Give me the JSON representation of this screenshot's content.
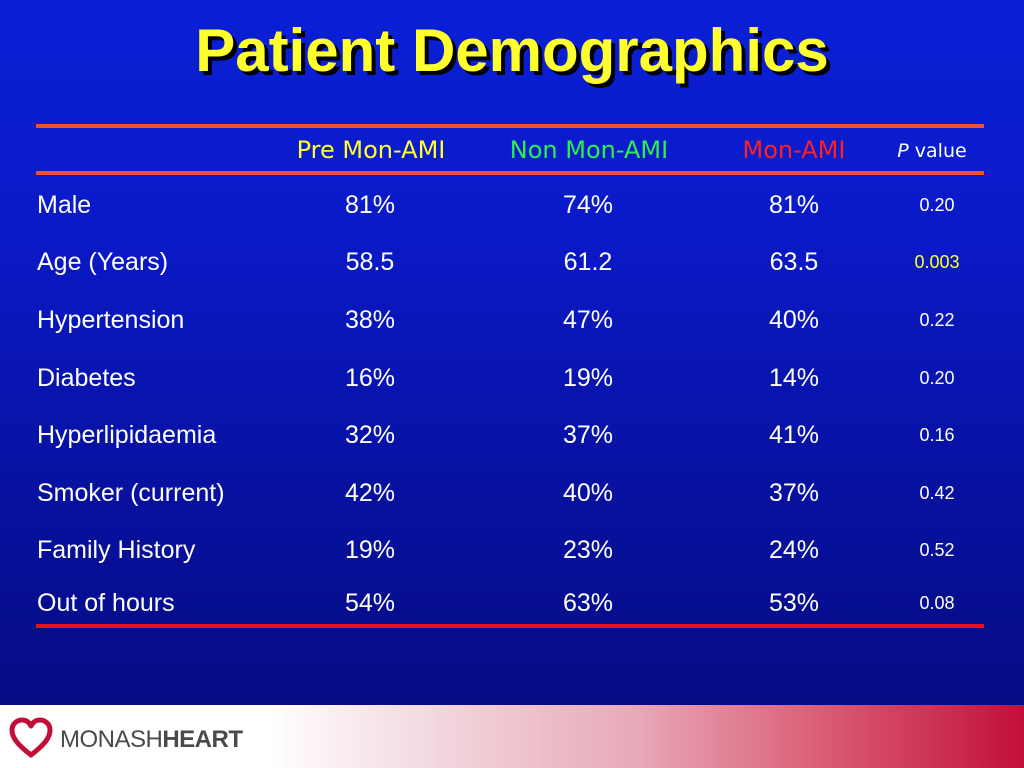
{
  "title": "Patient Demographics",
  "headers": {
    "pre": "Pre Mon-AMI",
    "non": "Non Mon-AMI",
    "mon": "Mon-AMI",
    "p_italic": "P",
    "p_rest": "value"
  },
  "rows": [
    {
      "label": "Male",
      "pre": "81%",
      "non": "74%",
      "mon": "81%",
      "p": "0.20"
    },
    {
      "label": "Age (Years)",
      "pre": "58.5",
      "non": "61.2",
      "mon": "63.5",
      "p": "0.003"
    },
    {
      "label": "Hypertension",
      "pre": "38%",
      "non": "47%",
      "mon": "40%",
      "p": "0.22"
    },
    {
      "label": "Diabetes",
      "pre": "16%",
      "non": "19%",
      "mon": "14%",
      "p": "0.20"
    },
    {
      "label": "Hyperlipidaemia",
      "pre": "32%",
      "non": "37%",
      "mon": "41%",
      "p": "0.16"
    },
    {
      "label": "Smoker (current)",
      "pre": "42%",
      "non": "40%",
      "mon": "37%",
      "p": "0.42"
    },
    {
      "label": "Family History",
      "pre": "19%",
      "non": "23%",
      "mon": "24%",
      "p": "0.52"
    },
    {
      "label": "Out of hours",
      "pre": "54%",
      "non": "63%",
      "mon": "53%",
      "p": "0.08"
    }
  ],
  "highlight_p_color": "#ffff2e",
  "logo": {
    "part1": "MONASH",
    "part2": "HEART"
  },
  "colors": {
    "title": "#ffff2e",
    "pre": "#ffff2e",
    "non": "#2ef04a",
    "mon": "#ff2020",
    "rule": "#e8542e",
    "brand": "#c20f3a"
  }
}
